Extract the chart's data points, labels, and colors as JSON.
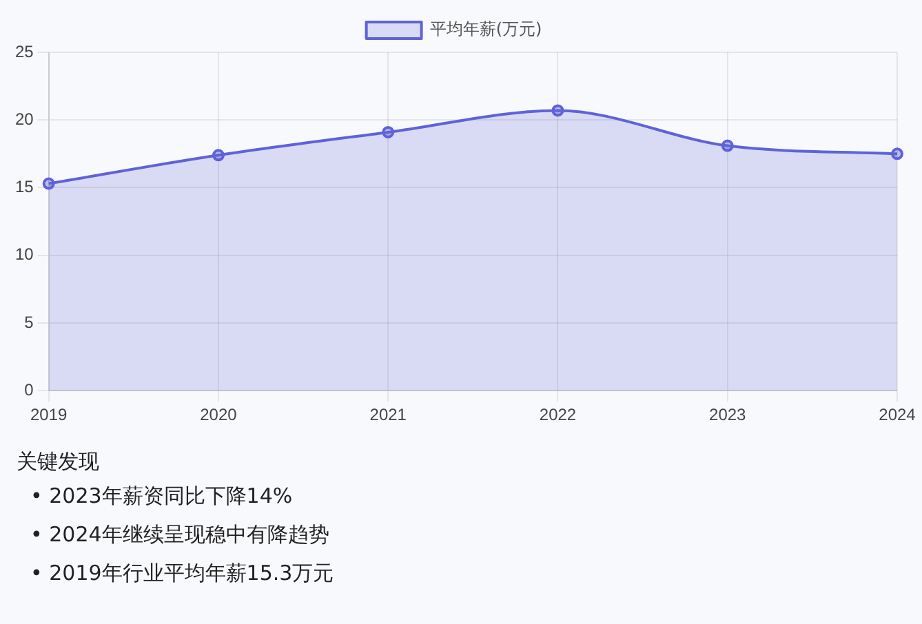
{
  "chart_data": {
    "type": "area",
    "categories": [
      "2019",
      "2020",
      "2021",
      "2022",
      "2023",
      "2024"
    ],
    "series": [
      {
        "name": "平均年薪(万元)",
        "color": "#5f63d8",
        "values": [
          15.3,
          17.4,
          19.1,
          20.7,
          18.1,
          17.5
        ]
      }
    ],
    "ylim": [
      0,
      25
    ],
    "yticks": [
      0,
      5,
      10,
      15,
      20,
      25
    ],
    "grid": true,
    "legend": "top",
    "marker": "circle",
    "line_style": "solid",
    "annotations": [
      "关键发现",
      "• 2023年薪资同比下降14%",
      "• 2024年继续呈现稳中有降趋势",
      "• 2019年行业平均年薪15.3万元"
    ]
  }
}
